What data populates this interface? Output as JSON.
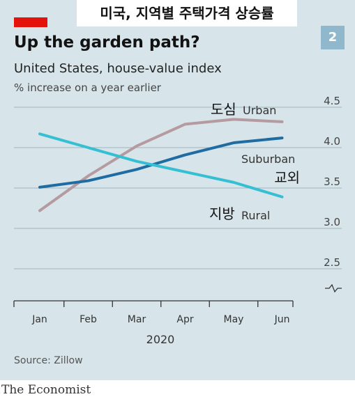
{
  "overlay": {
    "korean_title": "미국, 지역별 주택가격 상승률"
  },
  "header": {
    "badge": "2",
    "title": "Up the garden path?",
    "subtitle": "United States, house-value index",
    "unit_label": "% increase on a year earlier"
  },
  "footer": {
    "source": "Source: Zillow",
    "brand": "The Economist"
  },
  "colors": {
    "panel_bg": "#d7e5ea",
    "gridline": "#9fb3bc",
    "urban": "#b59a9f",
    "suburban": "#1f6ca3",
    "rural": "#35bfd3",
    "axis": "#333333",
    "accent_red": "#e3120b"
  },
  "chart_data": {
    "type": "line",
    "categories": [
      "Jan",
      "Feb",
      "Mar",
      "Apr",
      "May",
      "Jun"
    ],
    "xlabel": "2020",
    "ylim": [
      2.5,
      4.5
    ],
    "y_ticks": [
      "2.5",
      "3.0",
      "3.5",
      "4.0",
      "4.5"
    ],
    "y_axis_break": true,
    "grid": true,
    "series": [
      {
        "name": "Urban",
        "name_ko": "도심",
        "values": [
          3.22,
          3.65,
          4.02,
          4.29,
          4.35,
          4.32
        ]
      },
      {
        "name": "Suburban",
        "name_ko": "교외",
        "values": [
          3.51,
          3.59,
          3.73,
          3.91,
          4.06,
          4.12
        ]
      },
      {
        "name": "Rural",
        "name_ko": "지방",
        "values": [
          4.17,
          4.0,
          3.83,
          3.7,
          3.57,
          3.39
        ]
      }
    ]
  }
}
